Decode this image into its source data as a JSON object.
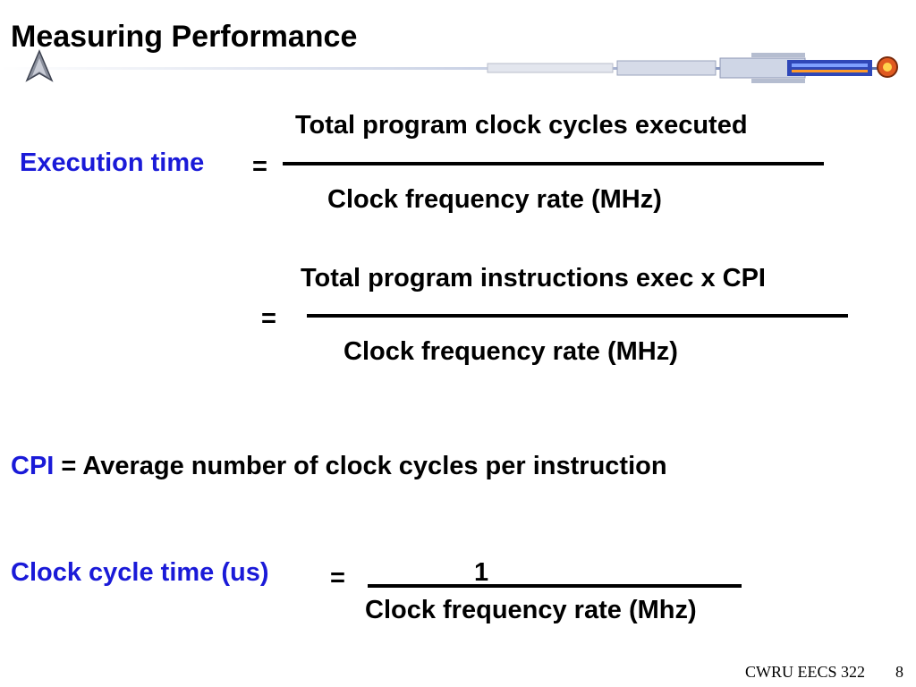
{
  "slide": {
    "title": "Measuring Performance",
    "accent_color": "#1a1ad8",
    "decor_icons": [
      "starfleet-insignia-icon",
      "starship-icon"
    ]
  },
  "eq1": {
    "label": "Execution time",
    "equals": "=",
    "numerator": "Total program clock cycles executed",
    "denominator": "Clock frequency rate (MHz)"
  },
  "eq2": {
    "equals": "=",
    "numerator": "Total program instructions exec x CPI",
    "denominator": "Clock frequency rate (MHz)"
  },
  "cpi": {
    "term": "CPI",
    "definition": "= Average number of clock cycles per instruction"
  },
  "clock": {
    "label": "Clock cycle time (us)",
    "equals": "=",
    "numerator": "1",
    "denominator": "Clock frequency rate (Mhz)"
  },
  "footer": {
    "course": "CWRU EECS 322",
    "page": "8"
  }
}
